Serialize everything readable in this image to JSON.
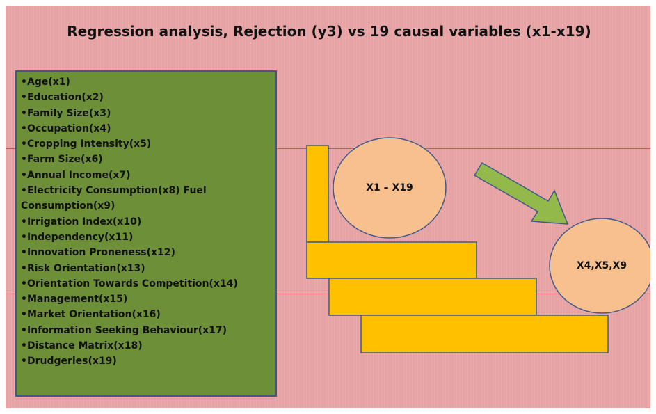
{
  "title": "Regression analysis, Rejection (y3) vs 19 causal variables (x1-x19)",
  "variables": [
    "•Age(x1)",
    "•Education(x2)",
    "•Family Size(x3)",
    "•Occupation(x4)",
    "•Cropping  Intensity(x5)",
    "•Farm Size(x6)",
    "•Annual Income(x7)",
    "•Electricity Consumption(x8) Fuel Consumption(x9)",
    "•Irrigation Index(x10)",
    "•Independency(x11)",
    "•Innovation Proneness(x12)",
    "•Risk Orientation(x13)",
    "•Orientation Towards Competition(x14)",
    "•Management(x15)",
    "•Market Orientation(x16)",
    "•Information Seeking Behaviour(x17)",
    "•Distance  Matrix(x18)",
    "•Drudgeries(x19)"
  ],
  "nodes": [
    {
      "label": "X1 – X19"
    },
    {
      "label": "X4,X5,X9"
    }
  ]
}
